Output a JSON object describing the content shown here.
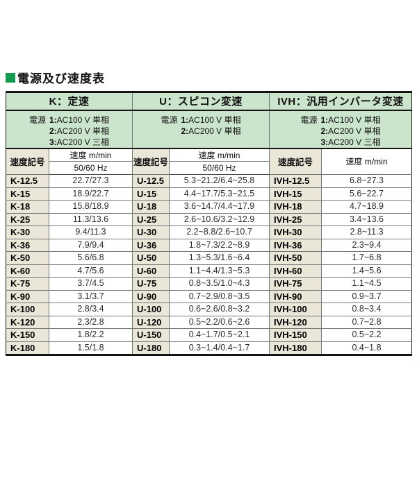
{
  "page": {
    "title": "電源及び速度表"
  },
  "colors": {
    "accent_green": "#129a4f",
    "section_green_bg": "#cbe4cc",
    "code_beige_bg": "#ebe7d8"
  },
  "table": {
    "sections": [
      {
        "id": "k",
        "header": "K：定速",
        "power_label": "電源",
        "power_options": [
          "1:AC100 V 単相",
          "2:AC200 V 単相",
          "3:AC200 V 三相"
        ],
        "code_header": "速度記号",
        "speed_header": "速度 m/min",
        "freq_header": "50/60 Hz"
      },
      {
        "id": "u",
        "header": "U：スピコン変速",
        "power_label": "電源",
        "power_options": [
          "1:AC100 V 単相",
          "2:AC200 V 単相"
        ],
        "code_header": "速度記号",
        "speed_header": "速度 m/min",
        "freq_header": "50/60 Hz"
      },
      {
        "id": "ivh",
        "header": "IVH：汎用インバータ変速",
        "power_label": "電源",
        "power_options": [
          "1:AC100 V 単相",
          "2:AC200 V 単相",
          "3:AC200 V 三相"
        ],
        "code_header": "速度記号",
        "speed_header": "速度 m/min",
        "freq_header": ""
      }
    ],
    "rows": [
      {
        "k_code": "K-12.5",
        "k_speed": "22.7/27.3",
        "u_code": "U-12.5",
        "u_speed": "5.3~21.2/6.4~25.8",
        "ivh_code": "IVH-12.5",
        "ivh_speed": "6.8~27.3"
      },
      {
        "k_code": "K-15",
        "k_speed": "18.9/22.7",
        "u_code": "U-15",
        "u_speed": "4.4~17.7/5.3~21.5",
        "ivh_code": "IVH-15",
        "ivh_speed": "5.6~22.7"
      },
      {
        "k_code": "K-18",
        "k_speed": "15.8/18.9",
        "u_code": "U-18",
        "u_speed": "3.6~14.7/4.4~17.9",
        "ivh_code": "IVH-18",
        "ivh_speed": "4.7~18.9"
      },
      {
        "k_code": "K-25",
        "k_speed": "11.3/13.6",
        "u_code": "U-25",
        "u_speed": "2.6~10.6/3.2~12.9",
        "ivh_code": "IVH-25",
        "ivh_speed": "3.4~13.6"
      },
      {
        "k_code": "K-30",
        "k_speed": "9.4/11.3",
        "u_code": "U-30",
        "u_speed": "2.2~8.8/2.6~10.7",
        "ivh_code": "IVH-30",
        "ivh_speed": "2.8~11.3"
      },
      {
        "k_code": "K-36",
        "k_speed": "7.9/9.4",
        "u_code": "U-36",
        "u_speed": "1.8~7.3/2.2~8.9",
        "ivh_code": "IVH-36",
        "ivh_speed": "2.3~9.4"
      },
      {
        "k_code": "K-50",
        "k_speed": "5.6/6.8",
        "u_code": "U-50",
        "u_speed": "1.3~5.3/1.6~6.4",
        "ivh_code": "IVH-50",
        "ivh_speed": "1.7~6.8"
      },
      {
        "k_code": "K-60",
        "k_speed": "4.7/5.6",
        "u_code": "U-60",
        "u_speed": "1.1~4.4/1.3~5.3",
        "ivh_code": "IVH-60",
        "ivh_speed": "1.4~5.6"
      },
      {
        "k_code": "K-75",
        "k_speed": "3.7/4.5",
        "u_code": "U-75",
        "u_speed": "0.8~3.5/1.0~4.3",
        "ivh_code": "IVH-75",
        "ivh_speed": "1.1~4.5"
      },
      {
        "k_code": "K-90",
        "k_speed": "3.1/3.7",
        "u_code": "U-90",
        "u_speed": "0.7~2.9/0.8~3.5",
        "ivh_code": "IVH-90",
        "ivh_speed": "0.9~3.7"
      },
      {
        "k_code": "K-100",
        "k_speed": "2.8/3.4",
        "u_code": "U-100",
        "u_speed": "0.6~2.6/0.8~3.2",
        "ivh_code": "IVH-100",
        "ivh_speed": "0.8~3.4"
      },
      {
        "k_code": "K-120",
        "k_speed": "2.3/2.8",
        "u_code": "U-120",
        "u_speed": "0.5~2.2/0.6~2.6",
        "ivh_code": "IVH-120",
        "ivh_speed": "0.7~2.8"
      },
      {
        "k_code": "K-150",
        "k_speed": "1.8/2.2",
        "u_code": "U-150",
        "u_speed": "0.4~1.7/0.5~2.1",
        "ivh_code": "IVH-150",
        "ivh_speed": "0.5~2.2"
      },
      {
        "k_code": "K-180",
        "k_speed": "1.5/1.8",
        "u_code": "U-180",
        "u_speed": "0.3~1.4/0.4~1.7",
        "ivh_code": "IVH-180",
        "ivh_speed": "0.4~1.8"
      }
    ]
  }
}
